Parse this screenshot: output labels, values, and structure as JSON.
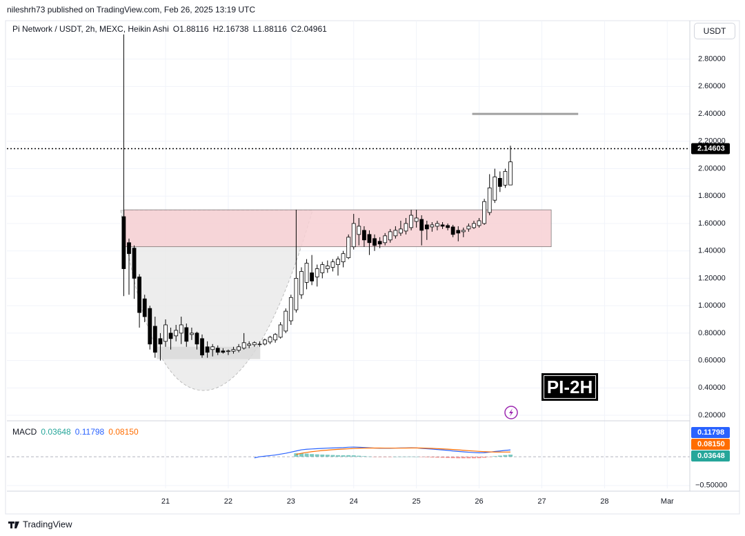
{
  "header": {
    "published": "nileshrh73 published on TradingView.com, Feb 26, 2025 13:19 UTC",
    "currency": "USDT",
    "badge": "PI-2H",
    "brand": "TradingView"
  },
  "chart_data": {
    "type": "candlestick",
    "legend": {
      "symbol": "Pi Network / USDT, 2h, MEXC, Heikin Ashi",
      "ohlc": [
        "O1.88116",
        "H2.16738",
        "L1.88116",
        "C2.04961"
      ]
    },
    "up_color": "#ffffff",
    "down_color": "#000000",
    "grid": true,
    "x": [
      20.333,
      20.417,
      20.5,
      20.583,
      20.667,
      20.75,
      20.833,
      20.917,
      21,
      21.083,
      21.167,
      21.25,
      21.333,
      21.417,
      21.5,
      21.583,
      21.667,
      21.75,
      21.833,
      21.917,
      22,
      22.083,
      22.167,
      22.25,
      22.333,
      22.417,
      22.5,
      22.583,
      22.667,
      22.75,
      22.833,
      22.917,
      23,
      23.083,
      23.167,
      23.25,
      23.333,
      23.417,
      23.5,
      23.583,
      23.667,
      23.75,
      23.833,
      23.917,
      24,
      24.083,
      24.167,
      24.25,
      24.333,
      24.417,
      24.5,
      24.583,
      24.667,
      24.75,
      24.833,
      24.917,
      25,
      25.083,
      25.167,
      25.25,
      25.333,
      25.417,
      25.5,
      25.583,
      25.667,
      25.75,
      25.833,
      25.917,
      26,
      26.083,
      26.167,
      26.25,
      26.333,
      26.417,
      26.5
    ],
    "open": [
      1.65,
      1.46,
      1.42,
      1.21,
      1.05,
      0.98,
      0.85,
      0.76,
      0.74,
      0.8,
      0.78,
      0.8,
      0.84,
      0.79,
      0.8,
      0.76,
      0.7,
      0.68,
      0.69,
      0.67,
      0.665,
      0.668,
      0.675,
      0.69,
      0.71,
      0.715,
      0.72,
      0.72,
      0.735,
      0.75,
      0.77,
      0.815,
      0.89,
      0.97,
      1.08,
      1.17,
      1.24,
      1.21,
      1.24,
      1.27,
      1.28,
      1.3,
      1.32,
      1.35,
      1.43,
      1.52,
      1.55,
      1.52,
      1.49,
      1.47,
      1.46,
      1.48,
      1.51,
      1.53,
      1.545,
      1.57,
      1.615,
      1.63,
      1.59,
      1.575,
      1.58,
      1.59,
      1.585,
      1.575,
      1.55,
      1.54,
      1.56,
      1.57,
      1.585,
      1.6,
      1.68,
      1.77,
      1.93,
      1.88,
      1.88116
    ],
    "high": [
      2.98,
      1.49,
      1.44,
      1.23,
      1.08,
      1.0,
      0.92,
      0.8,
      0.9,
      0.84,
      0.86,
      0.92,
      0.87,
      0.84,
      0.81,
      0.79,
      0.74,
      0.72,
      0.71,
      0.69,
      0.68,
      0.7,
      0.72,
      0.8,
      0.74,
      0.74,
      0.74,
      0.76,
      0.78,
      0.8,
      0.88,
      0.98,
      1.08,
      1.7,
      1.28,
      1.34,
      1.37,
      1.3,
      1.32,
      1.33,
      1.34,
      1.36,
      1.4,
      1.52,
      1.67,
      1.64,
      1.58,
      1.55,
      1.52,
      1.5,
      1.53,
      1.56,
      1.58,
      1.62,
      1.64,
      1.7,
      1.7,
      1.66,
      1.62,
      1.61,
      1.62,
      1.61,
      1.6,
      1.59,
      1.58,
      1.57,
      1.6,
      1.62,
      1.64,
      1.78,
      1.96,
      2.0,
      1.98,
      2.0,
      2.16738
    ],
    "low": [
      1.07,
      1.08,
      1.05,
      0.84,
      0.88,
      0.68,
      0.62,
      0.6,
      0.7,
      0.68,
      0.74,
      0.72,
      0.7,
      0.75,
      0.68,
      0.62,
      0.62,
      0.63,
      0.64,
      0.65,
      0.64,
      0.65,
      0.66,
      0.68,
      0.69,
      0.7,
      0.7,
      0.71,
      0.72,
      0.73,
      0.76,
      0.8,
      0.86,
      0.95,
      1.05,
      1.12,
      1.15,
      1.14,
      1.2,
      1.24,
      1.25,
      1.22,
      1.28,
      1.34,
      1.41,
      1.44,
      1.43,
      1.37,
      1.4,
      1.42,
      1.44,
      1.46,
      1.49,
      1.51,
      1.52,
      1.55,
      1.57,
      1.44,
      1.48,
      1.54,
      1.55,
      1.56,
      1.55,
      1.5,
      1.47,
      1.5,
      1.54,
      1.56,
      1.57,
      1.59,
      1.66,
      1.75,
      1.83,
      1.86,
      1.88116
    ],
    "close": [
      1.27,
      1.38,
      1.2,
      0.95,
      0.92,
      0.72,
      0.66,
      0.72,
      0.86,
      0.76,
      0.82,
      0.86,
      0.74,
      0.8,
      0.72,
      0.64,
      0.66,
      0.7,
      0.66,
      0.66,
      0.67,
      0.68,
      0.7,
      0.73,
      0.72,
      0.73,
      0.72,
      0.75,
      0.77,
      0.79,
      0.86,
      0.96,
      1.06,
      1.2,
      1.25,
      1.31,
      1.18,
      1.27,
      1.3,
      1.29,
      1.32,
      1.34,
      1.38,
      1.5,
      1.6,
      1.58,
      1.48,
      1.46,
      1.44,
      1.45,
      1.51,
      1.54,
      1.55,
      1.56,
      1.6,
      1.66,
      1.64,
      1.55,
      1.56,
      1.59,
      1.6,
      1.58,
      1.57,
      1.52,
      1.53,
      1.55,
      1.58,
      1.6,
      1.62,
      1.76,
      1.86,
      1.94,
      1.87,
      1.98,
      2.04961
    ],
    "xlim": [
      18.47,
      29.36
    ],
    "xticks": [
      21,
      22,
      23,
      24,
      25,
      26,
      27,
      28,
      {
        "value": 29,
        "label": "Mar"
      }
    ],
    "ylim": [
      0.16,
      3.08
    ],
    "yticks": [
      {
        "value": 0.2,
        "label": "0.20000"
      },
      {
        "value": 0.4,
        "label": "0.40000"
      },
      {
        "value": 0.6,
        "label": "0.60000"
      },
      {
        "value": 0.8,
        "label": "0.80000"
      },
      {
        "value": 1.0,
        "label": "1.00000"
      },
      {
        "value": 1.2,
        "label": "1.20000"
      },
      {
        "value": 1.4,
        "label": "1.40000"
      },
      {
        "value": 1.6,
        "label": "1.60000"
      },
      {
        "value": 1.8,
        "label": "1.80000"
      },
      {
        "value": 2.0,
        "label": "2.00000"
      },
      {
        "value": 2.2,
        "label": "2.20000"
      },
      {
        "value": 2.4,
        "label": "2.40000"
      },
      {
        "value": 2.6,
        "label": "2.60000"
      },
      {
        "value": 2.8,
        "label": "2.80000"
      }
    ],
    "last_price": 2.14603,
    "zones": [
      {
        "x": [
          20.34,
          27.15
        ],
        "y": [
          1.43,
          1.7
        ],
        "color": "#f7d0d4"
      },
      {
        "x": [
          20.86,
          22.51
        ],
        "y": [
          0.61,
          0.7
        ],
        "color": "#d9d9d9"
      }
    ],
    "levels": [
      {
        "x": [
          25.89,
          27.58
        ],
        "value": 2.4,
        "color": "#a0a0a0"
      }
    ],
    "macd": {
      "title": "MACD",
      "legend": [
        "0.03648",
        "0.11798",
        "0.08150"
      ],
      "ylim": [
        -0.55,
        0.6
      ],
      "yticks": [
        {
          "value": -0.5,
          "label": "−0.50000"
        }
      ],
      "histogram": {
        "color": "#26a69a",
        "negative_color": "#ef5350",
        "values": [
          null,
          null,
          null,
          null,
          null,
          null,
          null,
          null,
          null,
          null,
          null,
          null,
          null,
          null,
          null,
          null,
          null,
          null,
          null,
          null,
          null,
          null,
          null,
          null,
          null,
          null,
          null,
          null,
          null,
          null,
          null,
          null,
          null,
          0.06,
          0.06,
          0.055,
          0.047,
          0.042,
          0.038,
          0.035,
          0.03,
          0.027,
          0.025,
          0.027,
          0.024,
          0.017,
          0.01,
          0.004,
          -0.001,
          -0.003,
          -0.003,
          -0.002,
          0,
          0.002,
          0.002,
          0.003,
          0.001,
          -0.006,
          -0.01,
          -0.013,
          -0.016,
          -0.018,
          -0.021,
          -0.025,
          -0.027,
          -0.027,
          -0.027,
          -0.027,
          -0.025,
          -0.018,
          -0.004,
          0.01,
          0.019,
          0.029,
          0.03648
        ]
      },
      "macd_line": {
        "color": "#2962ff",
        "values": [
          null,
          null,
          null,
          null,
          null,
          null,
          null,
          null,
          null,
          null,
          null,
          null,
          null,
          null,
          null,
          null,
          null,
          null,
          null,
          null,
          null,
          null,
          null,
          null,
          null,
          -0.02,
          0,
          0.01,
          0.02,
          0.03,
          0.045,
          0.06,
          0.08,
          0.1,
          0.12,
          0.13,
          0.135,
          0.14,
          0.145,
          0.15,
          0.152,
          0.155,
          0.158,
          0.165,
          0.168,
          0.165,
          0.16,
          0.155,
          0.15,
          0.148,
          0.147,
          0.148,
          0.15,
          0.152,
          0.153,
          0.155,
          0.153,
          0.145,
          0.138,
          0.132,
          0.125,
          0.118,
          0.11,
          0.1,
          0.092,
          0.085,
          0.078,
          0.072,
          0.068,
          0.07,
          0.08,
          0.092,
          0.1,
          0.11,
          0.11798
        ]
      },
      "signal": {
        "color": "#ff6d00",
        "values": [
          null,
          null,
          null,
          null,
          null,
          null,
          null,
          null,
          null,
          null,
          null,
          null,
          null,
          null,
          null,
          null,
          null,
          null,
          null,
          null,
          null,
          null,
          null,
          null,
          null,
          null,
          null,
          null,
          null,
          null,
          null,
          null,
          null,
          0.04,
          0.06,
          0.075,
          0.088,
          0.098,
          0.107,
          0.115,
          0.122,
          0.128,
          0.133,
          0.138,
          0.144,
          0.148,
          0.15,
          0.151,
          0.151,
          0.151,
          0.15,
          0.15,
          0.15,
          0.15,
          0.151,
          0.152,
          0.152,
          0.151,
          0.148,
          0.145,
          0.141,
          0.136,
          0.131,
          0.125,
          0.119,
          0.112,
          0.105,
          0.099,
          0.093,
          0.088,
          0.084,
          0.082,
          0.081,
          0.0812,
          0.0815
        ]
      }
    }
  }
}
